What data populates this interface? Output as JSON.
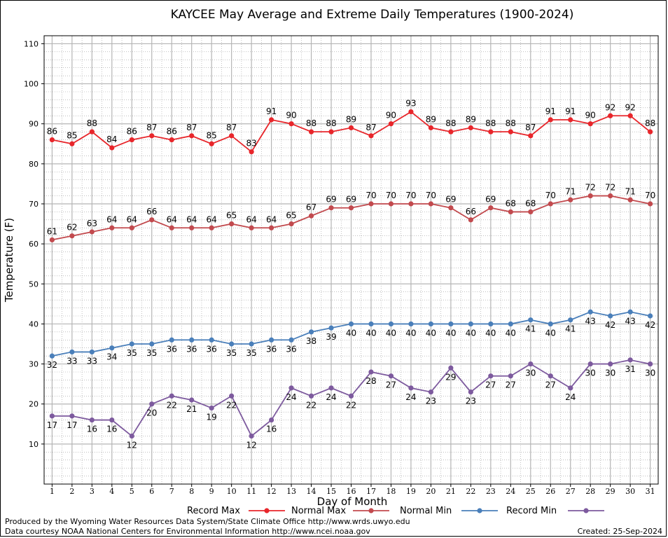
{
  "chart_data": {
    "type": "line",
    "title": "KAYCEE May Average and Extreme Daily Temperatures (1900-2024)",
    "xlabel": "Day of Month",
    "ylabel": "Temperature (F)",
    "xlim": [
      0.6,
      31.4
    ],
    "ylim": [
      0,
      112
    ],
    "x": [
      1,
      2,
      3,
      4,
      5,
      6,
      7,
      8,
      9,
      10,
      11,
      12,
      13,
      14,
      15,
      16,
      17,
      18,
      19,
      20,
      21,
      22,
      23,
      24,
      25,
      26,
      27,
      28,
      29,
      30,
      31
    ],
    "yticks": [
      10,
      20,
      30,
      40,
      50,
      60,
      70,
      80,
      90,
      100,
      110
    ],
    "grid": true,
    "legend_position": "bottom",
    "series": [
      {
        "name": "Record Max",
        "color": "#e8262b",
        "values": [
          86,
          85,
          88,
          84,
          86,
          87,
          86,
          87,
          85,
          87,
          83,
          91,
          90,
          88,
          88,
          89,
          87,
          90,
          93,
          89,
          88,
          89,
          88,
          88,
          87,
          91,
          91,
          90,
          92,
          92,
          88
        ]
      },
      {
        "name": "Normal Max",
        "color": "#c24a4e",
        "values": [
          61,
          62,
          63,
          64,
          64,
          66,
          64,
          64,
          64,
          65,
          64,
          64,
          65,
          67,
          69,
          69,
          70,
          70,
          70,
          70,
          69,
          66,
          69,
          68,
          68,
          70,
          71,
          72,
          72,
          71,
          70
        ]
      },
      {
        "name": "Normal Min",
        "color": "#4a7fba",
        "values": [
          32,
          33,
          33,
          34,
          35,
          35,
          36,
          36,
          36,
          35,
          35,
          36,
          36,
          38,
          39,
          40,
          40,
          40,
          40,
          40,
          40,
          40,
          40,
          40,
          41,
          40,
          41,
          43,
          42,
          43,
          42
        ]
      },
      {
        "name": "Record Min",
        "color": "#7d5a9e",
        "values": [
          17,
          17,
          16,
          16,
          12,
          20,
          22,
          21,
          19,
          22,
          12,
          16,
          24,
          22,
          24,
          22,
          28,
          27,
          24,
          23,
          29,
          23,
          27,
          27,
          30,
          27,
          24,
          30,
          30,
          31,
          30
        ]
      }
    ]
  },
  "footer": {
    "produced_by": "Produced by the Wyoming Water Resources Data System/State Climate Office http://www.wrds.uwyo.edu",
    "courtesy": "Data courtesy NOAA National Centers for Environmental Information http://www.ncei.noaa.gov",
    "created": "Created:  25-Sep-2024"
  }
}
